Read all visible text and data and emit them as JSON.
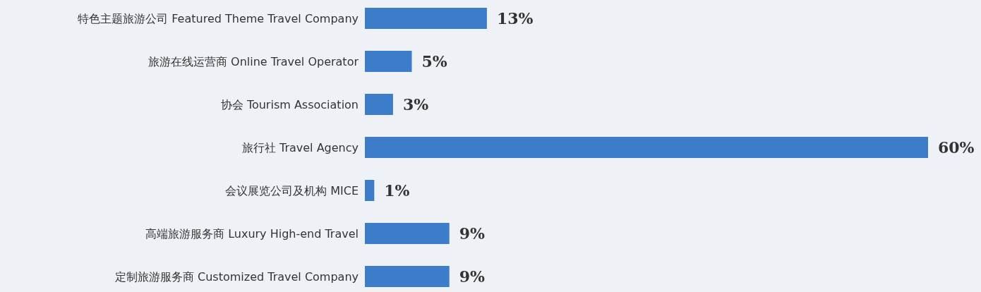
{
  "chart_data": {
    "type": "bar",
    "orientation": "horizontal",
    "categories": [
      "特色主题旅游公司 Featured Theme Travel Company",
      "旅游在线运营商 Online Travel Operator",
      "协会 Tourism Association",
      "旅行社 Travel Agency",
      "会议展览公司及机构 MICE",
      "高端旅游服务商 Luxury High-end Travel",
      "定制旅游服务商 Customized Travel Company"
    ],
    "values": [
      13,
      5,
      3,
      60,
      1,
      9,
      9
    ],
    "value_labels": [
      "13%",
      "5%",
      "3%",
      "60%",
      "1%",
      "9%",
      "9%"
    ],
    "color": "#3d7cc8"
  }
}
